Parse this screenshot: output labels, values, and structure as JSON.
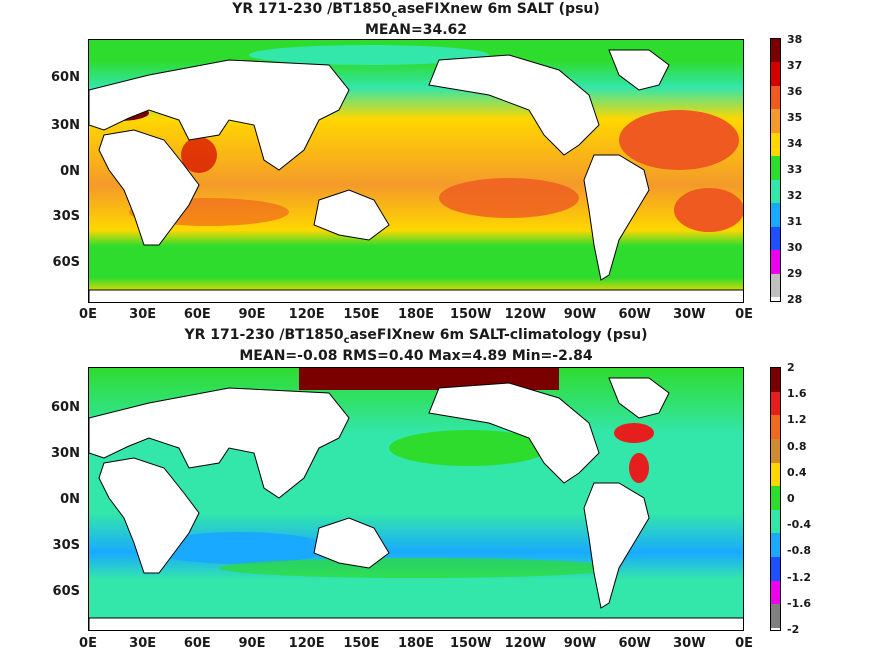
{
  "top": {
    "title1_pre": "YR 171-230 /BT1850",
    "title1_sub": "c",
    "title1_post": "aseFIXnew 6m SALT (psu)",
    "title2": "MEAN=34.62",
    "colorbar": {
      "ticks": [
        "38",
        "37",
        "36",
        "35",
        "34",
        "33",
        "32",
        "31",
        "30",
        "29",
        "28"
      ],
      "colors": [
        "#7a0000",
        "#d40000",
        "#ee5a20",
        "#f49a2a",
        "#ffd700",
        "#2edc2e",
        "#33e6aa",
        "#19aaff",
        "#1f50ff",
        "#ee00ee",
        "#c0c0c0"
      ]
    }
  },
  "bottom": {
    "title1_pre": "YR 171-230 /BT1850",
    "title1_sub": "c",
    "title1_post": "aseFIXnew 6m SALT-climatology (psu)",
    "title2": "MEAN=-0.08   RMS=0.40   Max=4.89   Min=-2.84",
    "colorbar": {
      "ticks": [
        "2",
        "1.6",
        "1.2",
        "0.8",
        "0.4",
        "0",
        "-0.4",
        "-0.8",
        "-1.2",
        "-1.6",
        "-2"
      ],
      "colors": [
        "#7a0000",
        "#e61e1e",
        "#f06a1e",
        "#d08a30",
        "#ffd700",
        "#2edc2e",
        "#33e6aa",
        "#19aaff",
        "#1f50ff",
        "#ee00ee",
        "#808080"
      ]
    }
  },
  "lat_labels": [
    "60N",
    "30N",
    "0N",
    "30S",
    "60S"
  ],
  "lon_labels": [
    "0E",
    "30E",
    "60E",
    "90E",
    "120E",
    "150E",
    "180E",
    "150W",
    "120W",
    "90W",
    "60W",
    "30W",
    "0E"
  ]
}
